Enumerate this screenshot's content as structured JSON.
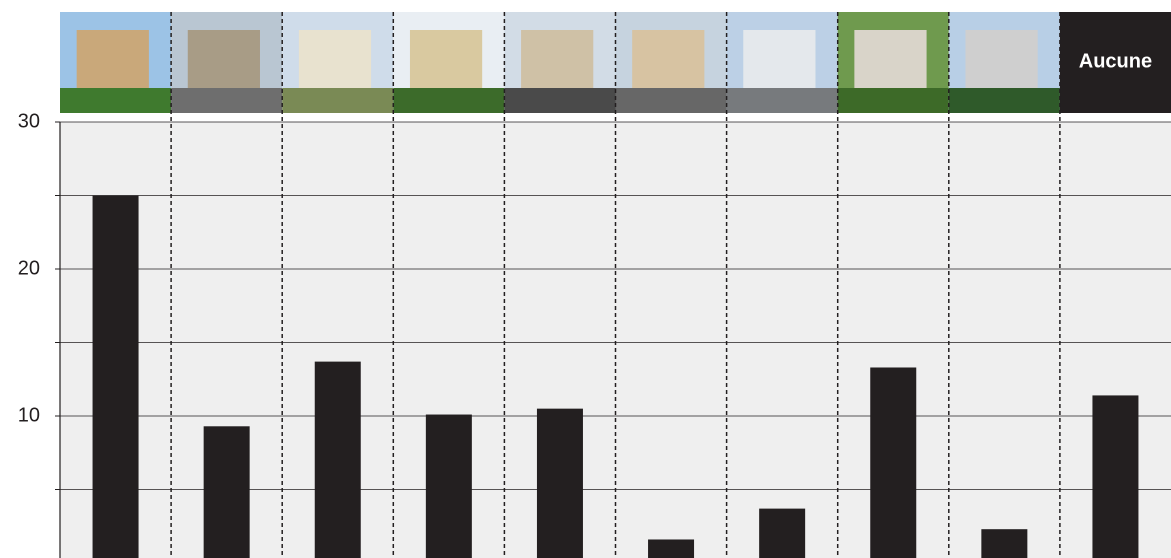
{
  "chart_data": {
    "type": "bar",
    "categories": [
      null,
      null,
      null,
      null,
      null,
      null,
      null,
      null,
      null,
      "Aucune"
    ],
    "values": [
      25.0,
      9.3,
      13.7,
      10.1,
      10.5,
      1.6,
      3.7,
      13.3,
      2.3,
      11.4
    ],
    "color": "#231f20",
    "ylim": [
      0,
      30
    ],
    "yticks": [
      10,
      20,
      30
    ],
    "minor_yticks": [
      5,
      15,
      25
    ],
    "grid": true
  }
}
